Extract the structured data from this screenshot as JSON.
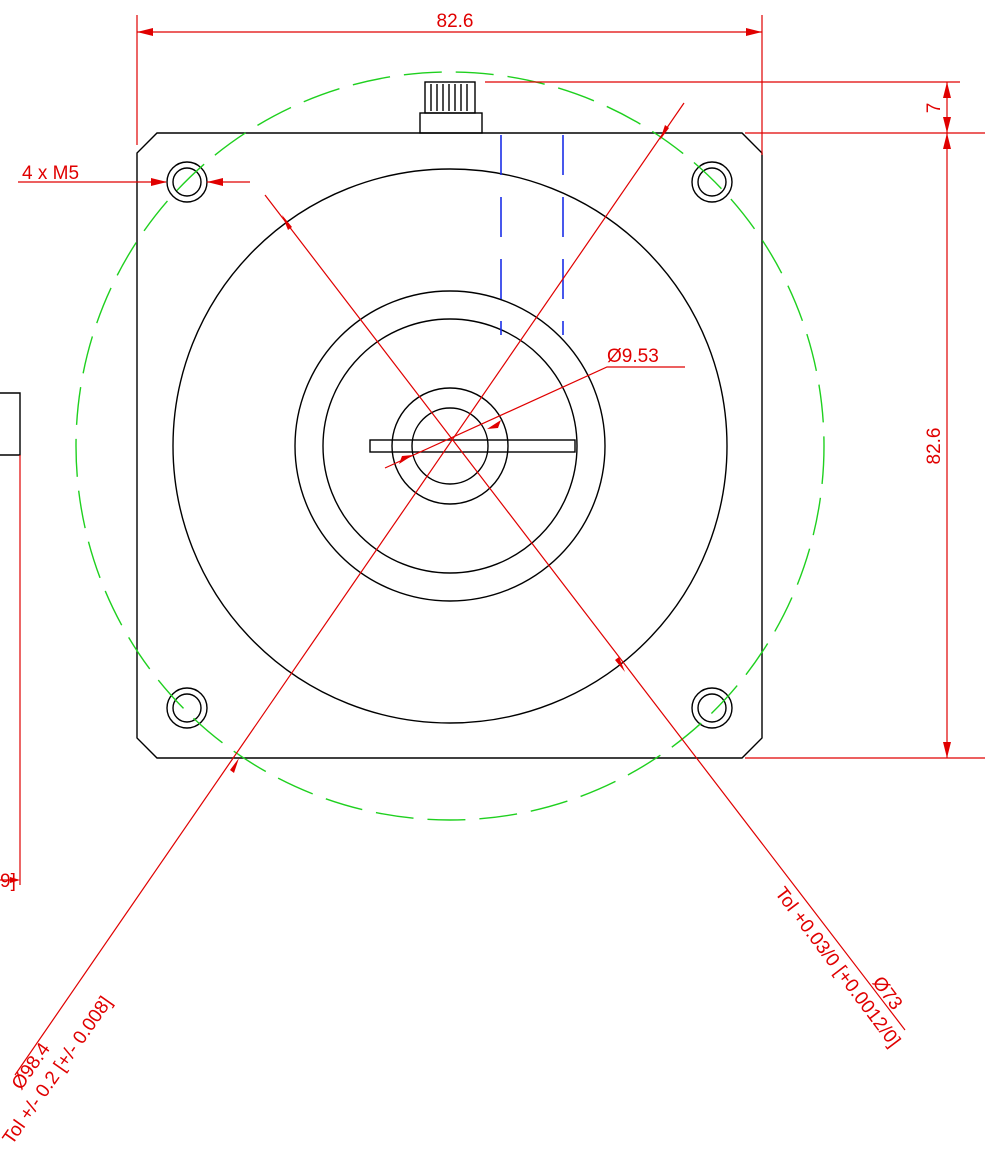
{
  "dimensions": {
    "top_width": "82.6",
    "connector_height": "7",
    "holes": "4 x M5",
    "side_height": "82.6",
    "shaft_diameter": "Ø9.53",
    "bolt_circle": "Ø98.4",
    "bolt_circle_tol": "Tol +/- 0.2 [+/- 0.008]",
    "pilot_diameter": "Ø73",
    "pilot_tol": "Tol +0.03/0 [+0.0012/0]",
    "left_partial": "9]"
  }
}
